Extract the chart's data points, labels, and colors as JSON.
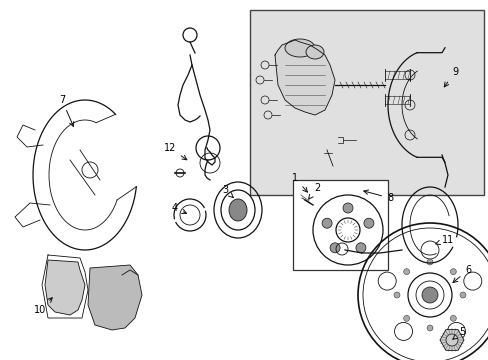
{
  "bg_color": "#ffffff",
  "line_color": "#111111",
  "box_bg": "#e8e8e8",
  "fig_width": 4.89,
  "fig_height": 3.6,
  "dpi": 100
}
